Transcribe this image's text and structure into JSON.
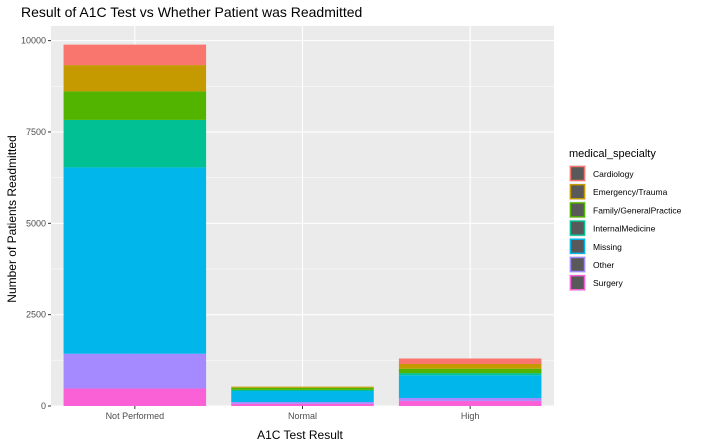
{
  "chart_data": {
    "type": "bar",
    "stacked": true,
    "title": "Result of A1C Test vs Whether Patient was Readmitted",
    "xlabel": "A1C Test Result",
    "ylabel": "Number of Patients Readmitted",
    "categories": [
      "Not Performed",
      "Normal",
      "High"
    ],
    "y_ticks": [
      "0",
      "2500",
      "5000",
      "7500",
      "10000"
    ],
    "ylim": [
      0,
      10400
    ],
    "grid": true,
    "legend_position": "right",
    "legend_title": "medical_specialty",
    "series": [
      {
        "name": "Cardiology",
        "color": "#F8766D",
        "values": [
          560,
          0,
          150
        ]
      },
      {
        "name": "Emergency/Trauma",
        "color": "#C49A00",
        "values": [
          720,
          30,
          130
        ]
      },
      {
        "name": "Family/GeneralPractice",
        "color": "#53B400",
        "values": [
          780,
          60,
          120
        ]
      },
      {
        "name": "InternalMedicine",
        "color": "#00C094",
        "values": [
          1300,
          30,
          60
        ]
      },
      {
        "name": "Missing",
        "color": "#00B6EB",
        "values": [
          5100,
          300,
          620
        ]
      },
      {
        "name": "Other",
        "color": "#A58AFF",
        "values": [
          950,
          50,
          80
        ]
      },
      {
        "name": "Surgery",
        "color": "#FB61D7",
        "values": [
          480,
          60,
          140
        ]
      }
    ]
  }
}
